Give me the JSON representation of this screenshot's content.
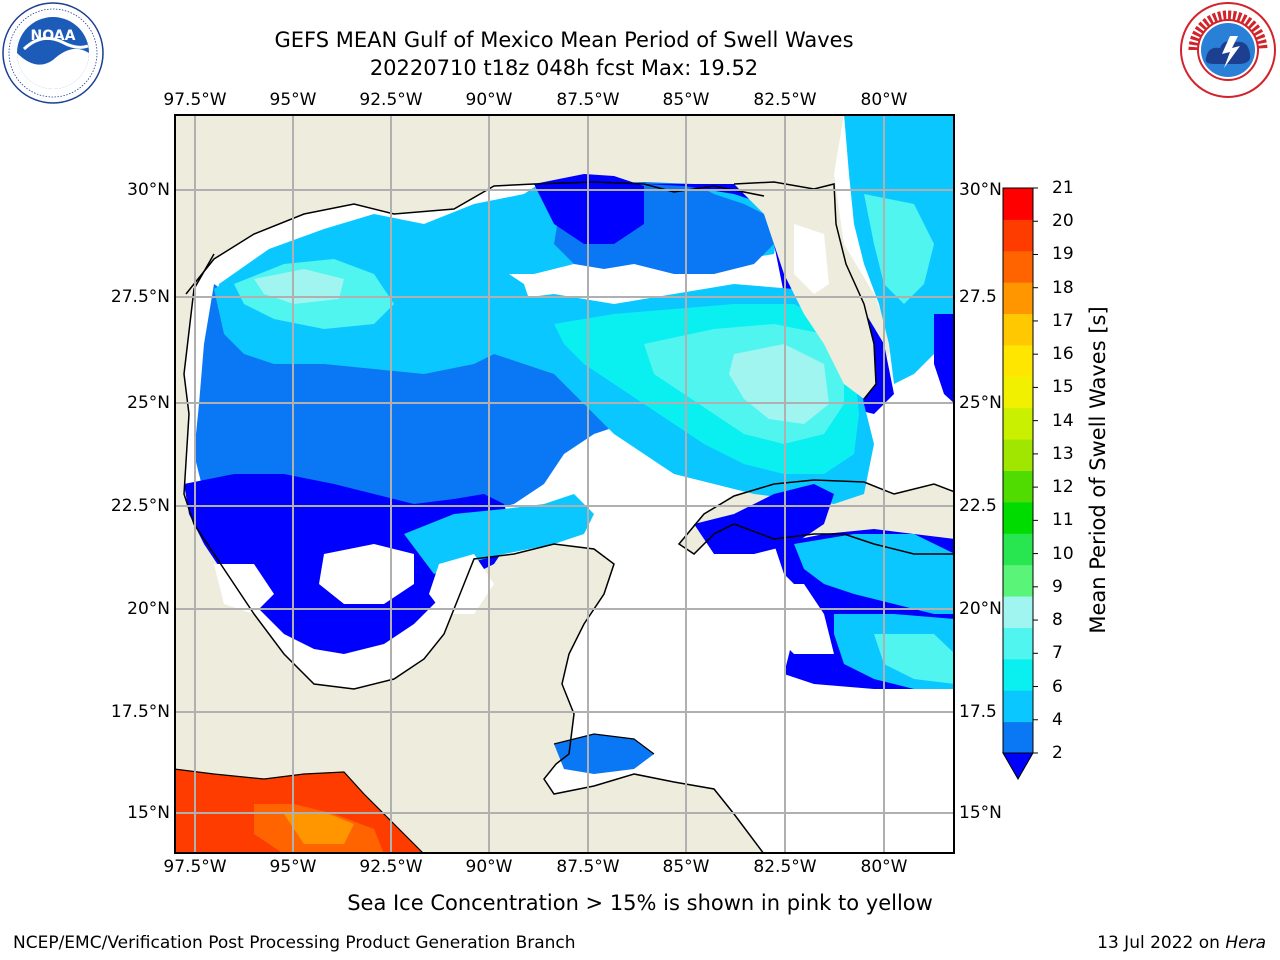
{
  "title": {
    "line1": "GEFS MEAN Gulf of Mexico Mean Period of Swell Waves",
    "line2": "20220710 t18z 048h fcst   Max: 19.52"
  },
  "logos": {
    "left": "noaa-logo",
    "right": "national-weather-service-logo"
  },
  "map": {
    "lon_labels": [
      "97.5°W",
      "95°W",
      "92.5°W",
      "90°W",
      "87.5°W",
      "85°W",
      "82.5°W",
      "80°W"
    ],
    "lat_labels_left": [
      "30°N",
      "27.5°N",
      "25°N",
      "22.5°N",
      "20°N",
      "17.5°N",
      "15°N"
    ],
    "lat_labels_right": [
      "30°N",
      "27.5",
      "25°N",
      "22.5",
      "20°N",
      "17.5",
      "15°N"
    ],
    "colors": {
      "land": "#eeeddd",
      "grid": "#b0b0b0"
    }
  },
  "colorbar": {
    "title": "Mean Period of Swell Waves [s]",
    "ticks": [
      "2",
      "4",
      "6",
      "7",
      "8",
      "9",
      "10",
      "11",
      "12",
      "13",
      "14",
      "15",
      "16",
      "17",
      "18",
      "19",
      "20",
      "21"
    ],
    "colors": [
      "#0a78f5",
      "#0ac8ff",
      "#0af0f0",
      "#50f5f0",
      "#a0f5f0",
      "#5af578",
      "#28e650",
      "#00dc00",
      "#50dc00",
      "#a0e600",
      "#c8f000",
      "#f0f000",
      "#ffe600",
      "#ffc800",
      "#ff9600",
      "#ff6400",
      "#ff3c00",
      "#ff0000"
    ],
    "under_color": "#0000ff"
  },
  "footnote": "Sea Ice Concentration > 15% is shown in pink to yellow",
  "footer": {
    "left": "NCEP/EMC/Verification Post Processing Product Generation Branch",
    "right_prefix": "13 Jul 2022 on ",
    "right_machine": "Hera"
  }
}
